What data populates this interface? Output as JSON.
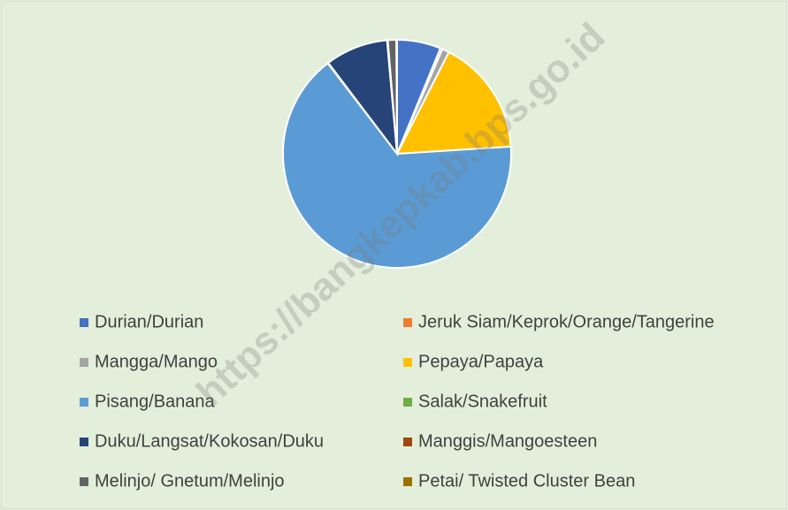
{
  "chart_data": {
    "type": "pie",
    "categories": [
      "Durian/Durian",
      "Jeruk Siam/Keprok/Orange/Tangerine",
      "Mangga/Mango",
      "Pepaya/Papaya",
      "Pisang/Banana",
      "Salak/Snakefruit",
      "Duku/Langsat/Kokosan/Duku",
      "Manggis/Mangoesteen",
      "Melinjo/ Gnetum/Melinjo",
      "Petai/ Twisted Cluster Bean"
    ],
    "values": [
      6.2,
      0.3,
      1.0,
      16.5,
      65.6,
      0.1,
      8.9,
      0.1,
      1.2,
      0.1
    ],
    "colors": [
      "#4472c4",
      "#ed7d31",
      "#a5a5a5",
      "#ffc000",
      "#5b9bd5",
      "#70ad47",
      "#264478",
      "#9e480e",
      "#636363",
      "#997300"
    ],
    "legend": "bottom",
    "watermark": "https://bangkepkab.bps.go.id"
  }
}
